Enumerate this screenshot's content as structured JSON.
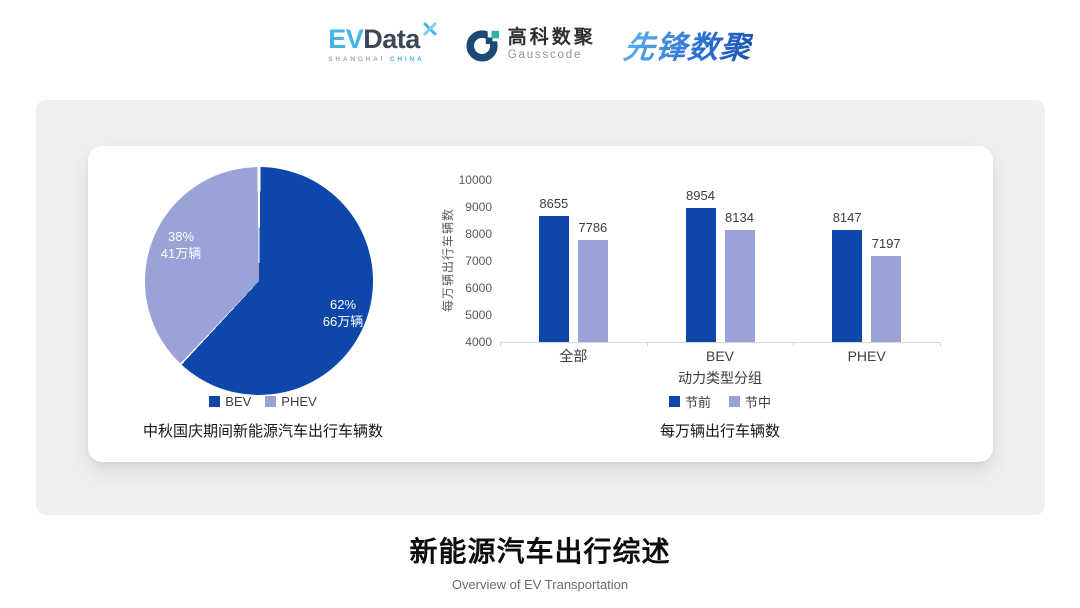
{
  "colors": {
    "primary_blue": "#0d47a9",
    "light_purple": "#99a3d8",
    "panel_gray": "#f0f0f0",
    "evdata_blue": "#41b6e6",
    "evdata_dark": "#3c4857",
    "gauss_navy": "#1b4a73",
    "gauss_teal": "#2eb3a4"
  },
  "header": {
    "evdata": {
      "ev": "EV",
      "data": "Data",
      "sub_left": "SHANGHAI",
      "sub_right": "CHINA"
    },
    "gausscode": {
      "cn": "高科数聚",
      "en": "Gausscode"
    },
    "pioneer": {
      "text": "先锋数聚"
    }
  },
  "chart_data": [
    {
      "type": "pie",
      "title": "中秋国庆期间新能源汽车出行车辆数",
      "legend_position": "bottom",
      "start_angle_deg": 0,
      "slices": [
        {
          "label": "BEV",
          "percent": 62,
          "percent_label": "62%",
          "value_label": "66万辆",
          "color": "#0d47a9"
        },
        {
          "label": "PHEV",
          "percent": 38,
          "percent_label": "38%",
          "value_label": "41万辆",
          "color": "#99a3d8"
        }
      ]
    },
    {
      "type": "bar",
      "title": "每万辆出行车辆数",
      "xlabel": "动力类型分组",
      "ylabel": "每万辆出行车辆数",
      "ylim": [
        4000,
        10000
      ],
      "ytick_step": 1000,
      "grid": false,
      "legend_position": "bottom",
      "categories": [
        "全部",
        "BEV",
        "PHEV"
      ],
      "series": [
        {
          "name": "节前",
          "values": [
            8655,
            8954,
            8147
          ],
          "color": "#0d47a9"
        },
        {
          "name": "节中",
          "values": [
            7786,
            8134,
            7197
          ],
          "color": "#99a3d8"
        }
      ]
    }
  ],
  "footer": {
    "title": "新能源汽车出行综述",
    "subtitle": "Overview of EV Transportation"
  }
}
